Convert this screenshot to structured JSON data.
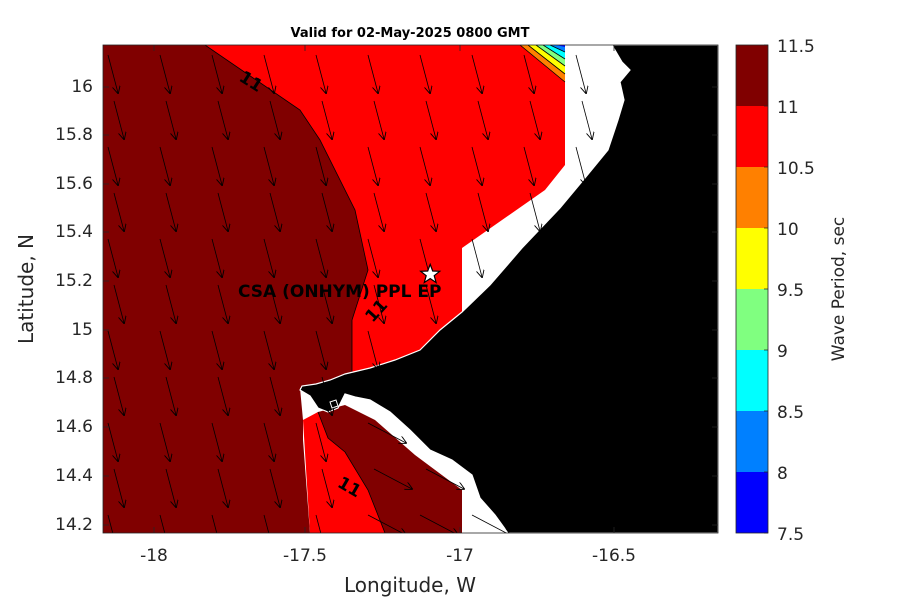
{
  "title": "Valid for 02-May-2025 0800 GMT",
  "xlabel": "Longitude, W",
  "ylabel": "Latitude, N",
  "x_ticks": [
    "-18",
    "-17.5",
    "-17",
    "-16.5"
  ],
  "y_ticks": [
    "16",
    "15.8",
    "15.6",
    "15.4",
    "15.2",
    "15",
    "14.8",
    "14.6",
    "14.4",
    "14.2"
  ],
  "colorbar": {
    "label": "Wave Period, sec",
    "ticks": [
      "11.5",
      "11",
      "10.5",
      "10",
      "9.5",
      "9",
      "8.5",
      "8",
      "7.5"
    ],
    "bins": [
      {
        "range": "11-11.5",
        "color": "#800000"
      },
      {
        "range": "10.5-11",
        "color": "#ff0000"
      },
      {
        "range": "10-10.5",
        "color": "#ff8000"
      },
      {
        "range": "9.5-10",
        "color": "#ffff00"
      },
      {
        "range": "9-9.5",
        "color": "#80ff80"
      },
      {
        "range": "8.5-9",
        "color": "#00ffff"
      },
      {
        "range": "8-8.5",
        "color": "#0080ff"
      },
      {
        "range": "7.5-8",
        "color": "#0000ff"
      }
    ]
  },
  "map": {
    "station_label": "CSA (ONHYM) PPL EP",
    "station_lon": -17.12,
    "station_lat": 15.23,
    "contour_labels": [
      "11",
      "11",
      "11"
    ],
    "land_color": "#000000",
    "extent": {
      "lon": [
        -18.2,
        -16.17
      ],
      "lat": [
        14.17,
        16.17
      ]
    }
  },
  "chart_data": {
    "type": "heatmap",
    "title": "Valid for 02-May-2025 0800 GMT",
    "xlabel": "Longitude, W",
    "ylabel": "Latitude, N",
    "xlim": [
      -18.2,
      -16.17
    ],
    "ylim": [
      14.17,
      16.17
    ],
    "colorbar_range": [
      7.5,
      11.5
    ],
    "colorbar_step": 0.5
  }
}
